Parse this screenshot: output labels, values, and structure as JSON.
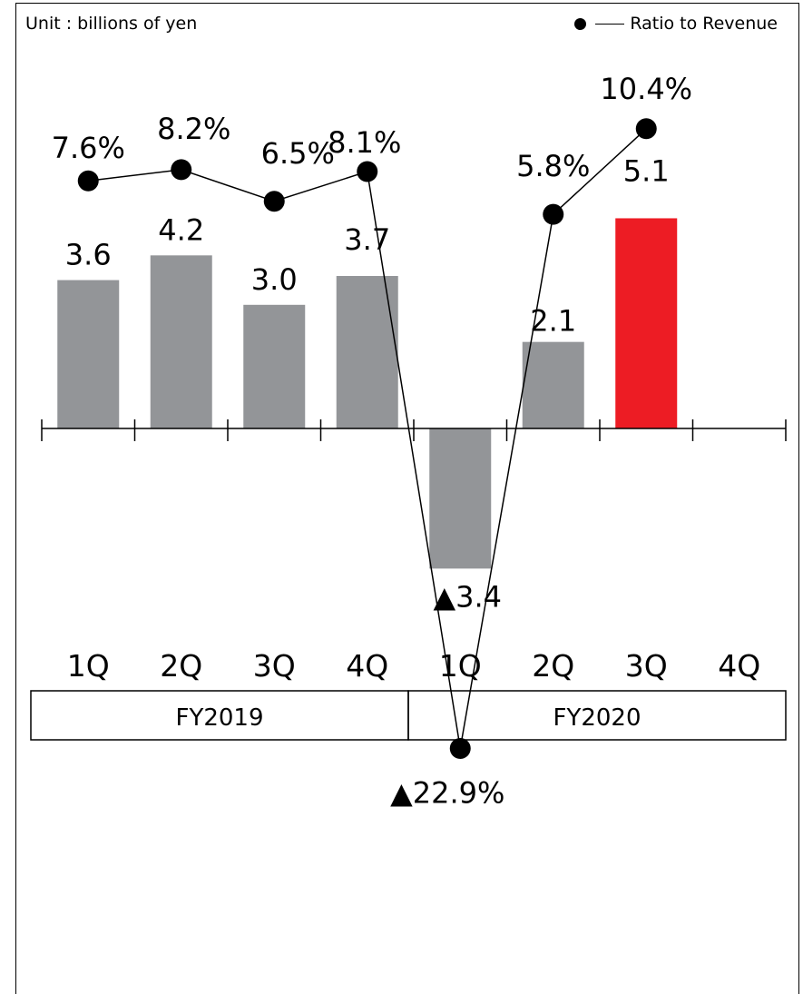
{
  "chart_data": {
    "type": "bar",
    "unit_label": "Unit : billions of yen",
    "legend": {
      "line_series_label": "Ratio to Revenue",
      "placement": "top-right"
    },
    "categories": [
      "1Q",
      "2Q",
      "3Q",
      "4Q",
      "1Q",
      "2Q",
      "3Q",
      "4Q"
    ],
    "groups": [
      {
        "label": "FY2019",
        "categories": [
          "1Q",
          "2Q",
          "3Q",
          "4Q"
        ]
      },
      {
        "label": "FY2020",
        "categories": [
          "1Q",
          "2Q",
          "3Q",
          "4Q"
        ]
      }
    ],
    "series": [
      {
        "type": "bar",
        "values": [
          3.6,
          4.2,
          3.0,
          3.7,
          -3.4,
          2.1,
          5.1,
          null
        ],
        "labels": [
          "3.6",
          "4.2",
          "3.0",
          "3.7",
          "▲3.4",
          "2.1",
          "5.1",
          ""
        ],
        "colors": [
          "#939598",
          "#939598",
          "#939598",
          "#939598",
          "#939598",
          "#939598",
          "#ED1C24",
          ""
        ]
      },
      {
        "type": "line",
        "name": "Ratio to Revenue",
        "values": [
          7.6,
          8.2,
          6.5,
          8.1,
          -22.9,
          5.8,
          10.4,
          null
        ],
        "labels": [
          "7.6%",
          "8.2%",
          "6.5%",
          "8.1%",
          "▲22.9%",
          "5.8%",
          "10.4%",
          ""
        ]
      }
    ],
    "grid": false
  }
}
